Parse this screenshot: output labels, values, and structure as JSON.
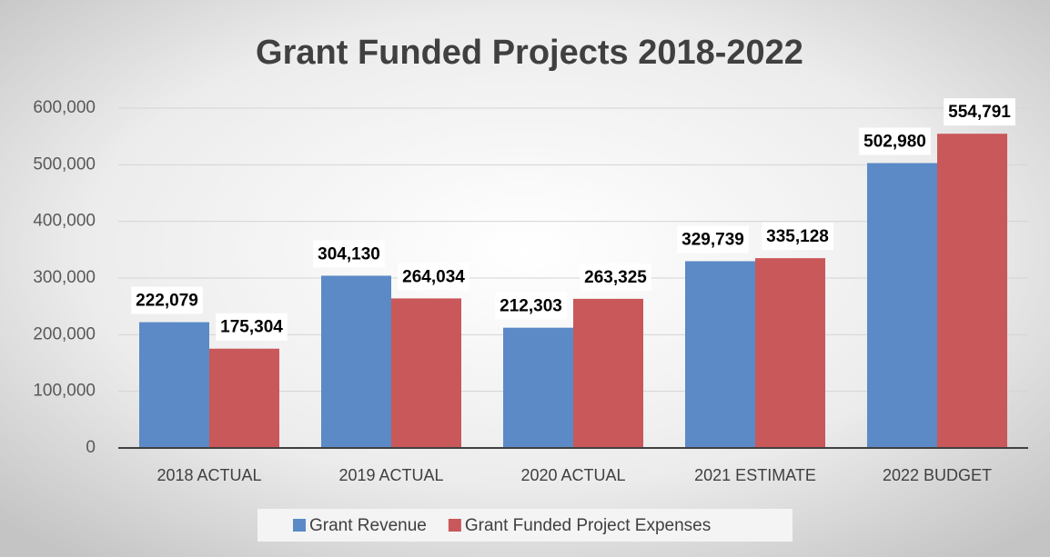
{
  "chart_data": {
    "type": "bar",
    "title": "Grant Funded Projects 2018-2022",
    "categories": [
      "2018 ACTUAL",
      "2019 ACTUAL",
      "2020 ACTUAL",
      "2021 ESTIMATE",
      "2022 BUDGET"
    ],
    "series": [
      {
        "name": "Grant Revenue",
        "color": "#5b8ac6",
        "values": [
          222079,
          304130,
          212303,
          329739,
          502980
        ],
        "value_labels": [
          "222,079",
          "304,130",
          "212,303",
          "329,739",
          "502,980"
        ]
      },
      {
        "name": "Grant Funded Project Expenses",
        "color": "#c9585a",
        "values": [
          175304,
          264034,
          263325,
          335128,
          554791
        ],
        "value_labels": [
          "175,304",
          "264,034",
          "263,325",
          "335,128",
          "554,791"
        ]
      }
    ],
    "ylim": [
      0,
      600000
    ],
    "yticks": [
      0,
      {
        "value": 100000,
        "label": "100,000"
      },
      {
        "value": 200000,
        "label": "200,000"
      },
      {
        "value": 300000,
        "label": "300,000"
      },
      {
        "value": 400000,
        "label": "400,000"
      },
      {
        "value": 500000,
        "label": "500,000"
      },
      {
        "value": 600000,
        "label": "600,000"
      }
    ],
    "grid": true,
    "legend": "bottom"
  }
}
